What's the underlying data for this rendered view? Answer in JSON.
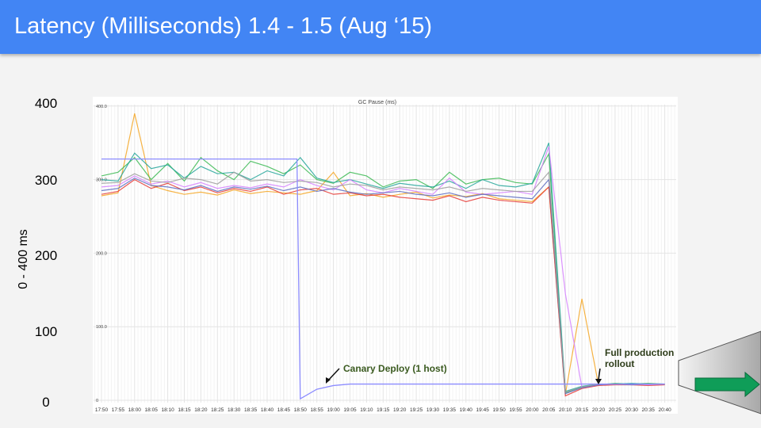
{
  "slide": {
    "title": "Latency (Milliseconds) 1.4 - 1.5 (Aug ‘15)",
    "y_axis_label": "0 - 400 ms",
    "y_ticks": [
      "400",
      "300",
      "200",
      "100",
      "0"
    ],
    "header_color": "#4285f4"
  },
  "chart_data": {
    "type": "line",
    "title": "GC Pause (ms)",
    "ylim": [
      0,
      400
    ],
    "y_tick_labels": [
      "400.0",
      "300.0",
      "200.0",
      "100.0",
      "0"
    ],
    "y_ticks": [
      400,
      300,
      200,
      100,
      0
    ],
    "grid": true,
    "categories": [
      "17:50",
      "17:55",
      "18:00",
      "18:05",
      "18:10",
      "18:15",
      "18:20",
      "18:25",
      "18:30",
      "18:35",
      "18:40",
      "18:45",
      "18:50",
      "18:55",
      "19:00",
      "19:05",
      "19:10",
      "19:15",
      "19:20",
      "19:25",
      "19:30",
      "19:35",
      "19:40",
      "19:45",
      "19:50",
      "19:55",
      "20:00",
      "20:05",
      "20:10",
      "20:15",
      "20:20",
      "20:25",
      "20:30",
      "20:35",
      "20:40"
    ],
    "series": [
      {
        "color": "#f5a623",
        "values": [
          278,
          282,
          390,
          292,
          285,
          280,
          283,
          279,
          286,
          281,
          284,
          282,
          280,
          285,
          310,
          278,
          281,
          276,
          280,
          283,
          275,
          279,
          277,
          281,
          274,
          272,
          270,
          290,
          8,
          138,
          21,
          22,
          22,
          21,
          22
        ]
      },
      {
        "color": "#3cba54",
        "values": [
          305,
          310,
          330,
          300,
          322,
          298,
          330,
          312,
          300,
          325,
          318,
          308,
          320,
          300,
          295,
          310,
          305,
          290,
          298,
          300,
          288,
          310,
          294,
          300,
          302,
          296,
          294,
          335,
          10,
          18,
          21,
          23,
          22,
          23,
          22
        ]
      },
      {
        "color": "#26a69a",
        "values": [
          300,
          298,
          336,
          315,
          320,
          302,
          318,
          308,
          310,
          300,
          312,
          305,
          330,
          302,
          296,
          300,
          294,
          288,
          295,
          292,
          290,
          298,
          288,
          300,
          292,
          290,
          295,
          350,
          12,
          19,
          22,
          22,
          23,
          22,
          22
        ]
      },
      {
        "color": "#e53935",
        "values": [
          280,
          284,
          300,
          288,
          295,
          285,
          290,
          282,
          288,
          284,
          290,
          280,
          286,
          288,
          280,
          282,
          278,
          280,
          276,
          274,
          272,
          278,
          270,
          276,
          272,
          270,
          268,
          290,
          6,
          16,
          20,
          21,
          21,
          20,
          21
        ]
      },
      {
        "color": "#d580ff",
        "values": [
          290,
          292,
          305,
          294,
          298,
          290,
          296,
          288,
          292,
          289,
          294,
          290,
          300,
          292,
          286,
          300,
          286,
          282,
          288,
          284,
          280,
          302,
          283,
          280,
          282,
          284,
          280,
          345,
          145,
          17,
          21,
          22,
          22,
          21,
          22
        ]
      },
      {
        "color": "#5c6bc0",
        "values": [
          285,
          288,
          302,
          292,
          290,
          286,
          292,
          284,
          290,
          287,
          291,
          285,
          290,
          284,
          288,
          283,
          280,
          282,
          284,
          280,
          278,
          282,
          276,
          280,
          278,
          276,
          274,
          300,
          9,
          17,
          21,
          22,
          21,
          22,
          22
        ]
      },
      {
        "color": "#9e9e9e",
        "values": [
          295,
          296,
          308,
          298,
          296,
          302,
          300,
          294,
          310,
          298,
          300,
          296,
          298,
          296,
          290,
          294,
          292,
          286,
          290,
          288,
          286,
          290,
          284,
          288,
          286,
          284,
          284,
          310,
          11,
          18,
          22,
          22,
          22,
          22,
          22
        ]
      }
    ],
    "canary_series": {
      "color": "#8c8cff",
      "points": [
        [
          "17:50",
          328
        ],
        [
          "18:49",
          328
        ],
        [
          "18:50",
          2
        ],
        [
          "18:55",
          15
        ],
        [
          "19:00",
          20
        ],
        [
          "19:05",
          22
        ],
        [
          "19:30",
          22
        ],
        [
          "20:00",
          22
        ],
        [
          "20:40",
          22
        ]
      ]
    },
    "annotations": [
      {
        "text": "Canary Deploy (1 host)",
        "color": "#3a5a1f"
      },
      {
        "text_line1": "Full production",
        "text_line2": "rollout",
        "color": "#2e3d1a"
      }
    ]
  },
  "decoration": {
    "arrow_color": "#0f9d58"
  }
}
